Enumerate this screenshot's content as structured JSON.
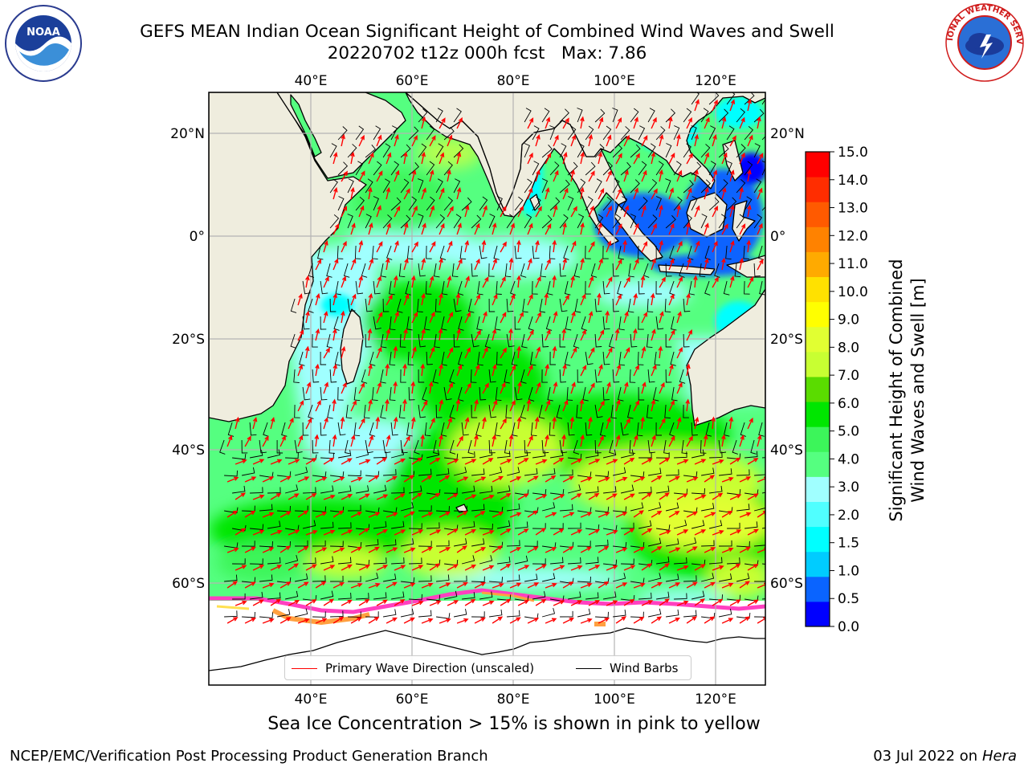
{
  "header": {
    "title_line1": "GEFS MEAN Indian Ocean Significant Height of Combined Wind Waves and Swell",
    "title_line2": "20220702 t12z 000h fcst   Max: 7.86"
  },
  "logos": {
    "left": {
      "icon": "noaa-logo",
      "text": "NOAA"
    },
    "right": {
      "icon": "nws-logo",
      "text": "NATIONAL WEATHER SERVICE"
    }
  },
  "map": {
    "lon_range": [
      20,
      130
    ],
    "lat_range": [
      -73,
      27
    ],
    "top_lon_labels": [
      "40°E",
      "60°E",
      "80°E",
      "100°E",
      "120°E"
    ],
    "bottom_lon_labels": [
      "40°E",
      "60°E",
      "80°E",
      "100°E",
      "120°E"
    ],
    "left_lat_labels": [
      "20°N",
      "0°",
      "20°S",
      "40°S",
      "60°S"
    ],
    "right_lat_labels": [
      "20°N",
      "0°",
      "20°S",
      "40°S",
      "60°S"
    ],
    "grid": true,
    "land_color": "#efedde",
    "colors": {
      "deep_blue": "#0000ff",
      "blue": "#0a64ff",
      "cyan": "#00ffff",
      "light_cyan": "#a0ffff",
      "light_green": "#55ff80",
      "green": "#00e600",
      "yellow_green": "#c8ff32",
      "arrow": "#ff0000",
      "barb": "#000000"
    }
  },
  "legend": {
    "items": [
      {
        "label": "Primary Wave Direction (unscaled)",
        "color": "#ff0000"
      },
      {
        "label": "Wind Barbs",
        "color": "#000000"
      }
    ]
  },
  "colorbar": {
    "label_line1": "Significant Height of Combined",
    "label_line2": "Wind Waves and Swell [m]",
    "ticks": [
      "0.0",
      "0.5",
      "1.0",
      "1.5",
      "2.0",
      "3.0",
      "4.0",
      "5.0",
      "6.0",
      "7.0",
      "8.0",
      "9.0",
      "10.0",
      "11.0",
      "12.0",
      "13.0",
      "14.0",
      "15.0"
    ],
    "colors": [
      "#0000ff",
      "#0a64ff",
      "#00ccff",
      "#00ffff",
      "#50ffff",
      "#a0ffff",
      "#55ff80",
      "#3cf55a",
      "#00e600",
      "#5adc00",
      "#c8ff32",
      "#e1ff32",
      "#ffff00",
      "#ffe100",
      "#ffaa00",
      "#ff8200",
      "#ff5a00",
      "#ff2d00",
      "#ff0000"
    ]
  },
  "caption": "Sea Ice Concentration > 15% is shown in pink to yellow",
  "footer": {
    "left": "NCEP/EMC/Verification Post Processing Product Generation Branch",
    "right_date": "03 Jul 2022 on",
    "right_machine": "Hera"
  }
}
